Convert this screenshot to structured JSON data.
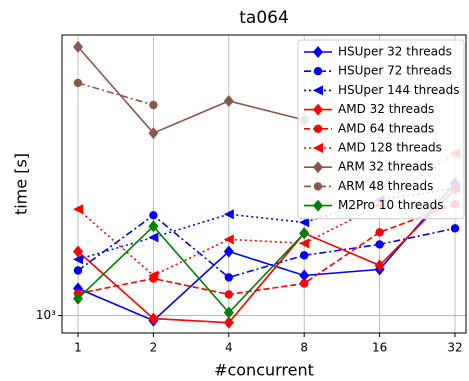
{
  "chart_data": {
    "type": "line",
    "title": "ta064",
    "x_label": "#concurrent",
    "y_label": "time [s]",
    "categories": [
      "1",
      "2",
      "4",
      "8",
      "16",
      "32"
    ],
    "log_y": true,
    "grid": true,
    "legend": "upper right",
    "ylim": [
      900,
      5450
    ],
    "yticks": [
      {
        "value": 1000,
        "label": "10³"
      }
    ],
    "series": [
      {
        "name": "HSUper 32 threads",
        "color": "#0000ff",
        "linestyle": "solid",
        "marker": "diamond",
        "values": [
          1178,
          970,
          1473,
          1274,
          1322,
          2225
        ]
      },
      {
        "name": "HSUper 72 threads",
        "color": "#0000ff",
        "linestyle": "dashdot",
        "marker": "circle",
        "values": [
          1313,
          1833,
          1259,
          1439,
          1537,
          1694
        ]
      },
      {
        "name": "HSUper 144 threads",
        "color": "#0000ff",
        "linestyle": "dotted",
        "marker": "triangle-left",
        "values": [
          1404,
          1604,
          1845,
          1756,
          2008,
          2159
        ]
      },
      {
        "name": "AMD 32 threads",
        "color": "#ff0000",
        "linestyle": "solid",
        "marker": "diamond",
        "values": [
          1473,
          982,
          958,
          1644,
          1354,
          2147
        ]
      },
      {
        "name": "AMD 64 threads",
        "color": "#ff0000",
        "linestyle": "dashed",
        "marker": "circle",
        "values": [
          1142,
          1251,
          1136,
          1214,
          1654,
          1959
        ]
      },
      {
        "name": "AMD 128 threads",
        "color": "#ff0000",
        "linestyle": "dotted",
        "marker": "triangle-left",
        "values": [
          1901,
          1274,
          1585,
          1547,
          1948,
          2669
        ]
      },
      {
        "name": "ARM 32 threads",
        "color": "#8c564b",
        "linestyle": "solid",
        "marker": "diamond",
        "values": [
          5072,
          3013,
          3657,
          3261,
          null,
          null
        ]
      },
      {
        "name": "ARM 48 threads",
        "color": "#8c564b",
        "linestyle": "dashdot",
        "marker": "circle",
        "values": [
          4079,
          3570,
          null,
          null,
          null,
          null
        ]
      },
      {
        "name": "M2Pro 10 threads",
        "color": "#008000",
        "linestyle": "solid",
        "marker": "diamond",
        "values": [
          1108,
          1715,
          1018,
          1644,
          null,
          null
        ]
      }
    ]
  }
}
